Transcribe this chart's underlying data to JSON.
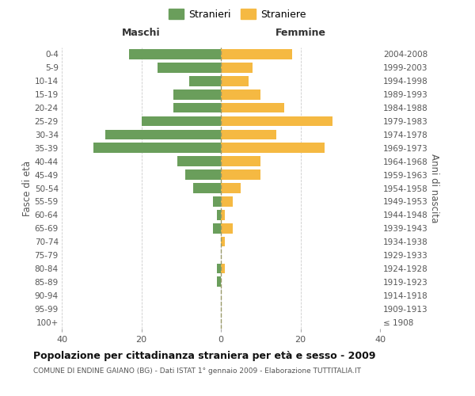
{
  "age_groups": [
    "100+",
    "95-99",
    "90-94",
    "85-89",
    "80-84",
    "75-79",
    "70-74",
    "65-69",
    "60-64",
    "55-59",
    "50-54",
    "45-49",
    "40-44",
    "35-39",
    "30-34",
    "25-29",
    "20-24",
    "15-19",
    "10-14",
    "5-9",
    "0-4"
  ],
  "birth_years": [
    "≤ 1908",
    "1909-1913",
    "1914-1918",
    "1919-1923",
    "1924-1928",
    "1929-1933",
    "1934-1938",
    "1939-1943",
    "1944-1948",
    "1949-1953",
    "1954-1958",
    "1959-1963",
    "1964-1968",
    "1969-1973",
    "1974-1978",
    "1979-1983",
    "1984-1988",
    "1989-1993",
    "1994-1998",
    "1999-2003",
    "2004-2008"
  ],
  "maschi": [
    0,
    0,
    0,
    1,
    1,
    0,
    0,
    2,
    1,
    2,
    7,
    9,
    11,
    32,
    29,
    20,
    12,
    12,
    8,
    16,
    23
  ],
  "femmine": [
    0,
    0,
    0,
    0,
    1,
    0,
    1,
    3,
    1,
    3,
    5,
    10,
    10,
    26,
    14,
    28,
    16,
    10,
    7,
    8,
    18
  ],
  "color_maschi": "#6a9e5b",
  "color_femmine": "#f5b942",
  "color_center_line": "#9a9a6a",
  "title": "Popolazione per cittadinanza straniera per età e sesso - 2009",
  "subtitle": "COMUNE DI ENDINE GAIANO (BG) - Dati ISTAT 1° gennaio 2009 - Elaborazione TUTTITALIA.IT",
  "label_maschi_header": "Maschi",
  "label_femmine_header": "Femmine",
  "ylabel_left": "Fasce di età",
  "ylabel_right": "Anni di nascita",
  "legend_stranieri": "Stranieri",
  "legend_straniere": "Straniere",
  "xlim": 40,
  "background_color": "#ffffff",
  "grid_color": "#cccccc"
}
